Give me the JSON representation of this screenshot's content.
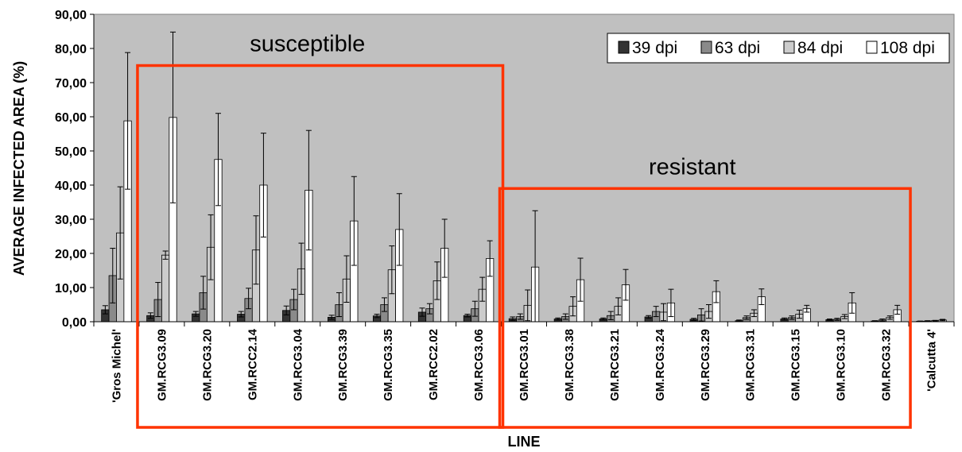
{
  "chart_data": {
    "type": "bar",
    "ylabel": "AVERAGE INFECTED AREA (%)",
    "xlabel": "LINE",
    "ylim": [
      0,
      90
    ],
    "yticks": [
      "0,00",
      "10,00",
      "20,00",
      "30,00",
      "40,00",
      "50,00",
      "60,00",
      "70,00",
      "80,00",
      "90,00"
    ],
    "grid": false,
    "legend_position": "top-right",
    "categories": [
      "'Gros Michel'",
      "GM.RCG3.09",
      "GM.RCG3.20",
      "GM.RCC2.14",
      "GM.RCG3.04",
      "GM.RCG3.39",
      "GM.RCG3.35",
      "GM.RCC2.02",
      "GM.RCG3.06",
      "GM.RCG3.01",
      "GM.RCG3.38",
      "GM.RCG3.21",
      "GM.RCG3.24",
      "GM.RCG3.29",
      "GM.RCG3.31",
      "GM.RCG3.15",
      "GM.RCG3.10",
      "GM.RCG3.32",
      "'Calcutta 4'"
    ],
    "series": [
      {
        "name": "39 dpi",
        "color": "#333333",
        "values": [
          3.5,
          1.8,
          2.3,
          2.2,
          3.3,
          1.3,
          1.7,
          2.8,
          1.8,
          0.9,
          0.8,
          0.8,
          1.4,
          0.7,
          0.3,
          0.8,
          0.6,
          0.2,
          0.1
        ],
        "errors": [
          1.2,
          0.8,
          0.7,
          0.8,
          1.3,
          0.6,
          0.5,
          1.2,
          0.4,
          0.5,
          0.3,
          0.3,
          0.4,
          0.3,
          0.2,
          0.3,
          0.2,
          0.1,
          0.1
        ]
      },
      {
        "name": "63 dpi",
        "color": "#8a8a8a",
        "values": [
          13.5,
          6.5,
          8.5,
          6.8,
          6.5,
          5.0,
          5.0,
          3.8,
          3.8,
          1.5,
          1.5,
          1.8,
          3.0,
          2.0,
          1.2,
          1.2,
          0.7,
          0.5,
          0.2
        ],
        "errors": [
          8.0,
          5.0,
          4.8,
          3.0,
          3.0,
          3.5,
          2.0,
          1.5,
          2.2,
          0.8,
          0.8,
          1.2,
          1.5,
          1.8,
          0.5,
          0.5,
          0.3,
          0.3,
          0.1
        ]
      },
      {
        "name": "84 dpi",
        "color": "#cccccc",
        "values": [
          26.0,
          19.5,
          21.8,
          21.0,
          15.5,
          12.5,
          15.2,
          12.0,
          9.5,
          4.8,
          4.5,
          4.5,
          2.8,
          3.0,
          2.5,
          2.2,
          1.5,
          1.2,
          0.3
        ],
        "errors": [
          13.5,
          1.2,
          9.5,
          10.0,
          7.5,
          6.8,
          7.0,
          5.5,
          3.5,
          4.5,
          2.8,
          2.5,
          2.5,
          2.0,
          1.0,
          1.2,
          0.6,
          0.5,
          0.1
        ]
      },
      {
        "name": "108 dpi",
        "color": "#ffffff",
        "values": [
          58.8,
          59.8,
          47.5,
          40.0,
          38.5,
          29.5,
          27.0,
          21.5,
          18.5,
          16.0,
          12.3,
          10.8,
          5.5,
          8.8,
          7.3,
          3.8,
          5.5,
          3.5,
          0.5
        ],
        "errors": [
          20.0,
          25.0,
          13.5,
          15.2,
          17.5,
          13.0,
          10.5,
          8.5,
          5.2,
          16.5,
          6.3,
          4.5,
          4.0,
          3.2,
          2.3,
          1.0,
          3.0,
          1.3,
          0.2
        ]
      }
    ],
    "annotations": [
      {
        "text": "susceptible",
        "covers": [
          "GM.RCG3.09",
          "GM.RCG3.06"
        ],
        "box_top_value": 75
      },
      {
        "text": "resistant",
        "covers": [
          "GM.RCG3.01",
          "GM.RCG3.32"
        ],
        "box_top_value": 39
      }
    ],
    "annotation_box_color": "#ff3300"
  }
}
